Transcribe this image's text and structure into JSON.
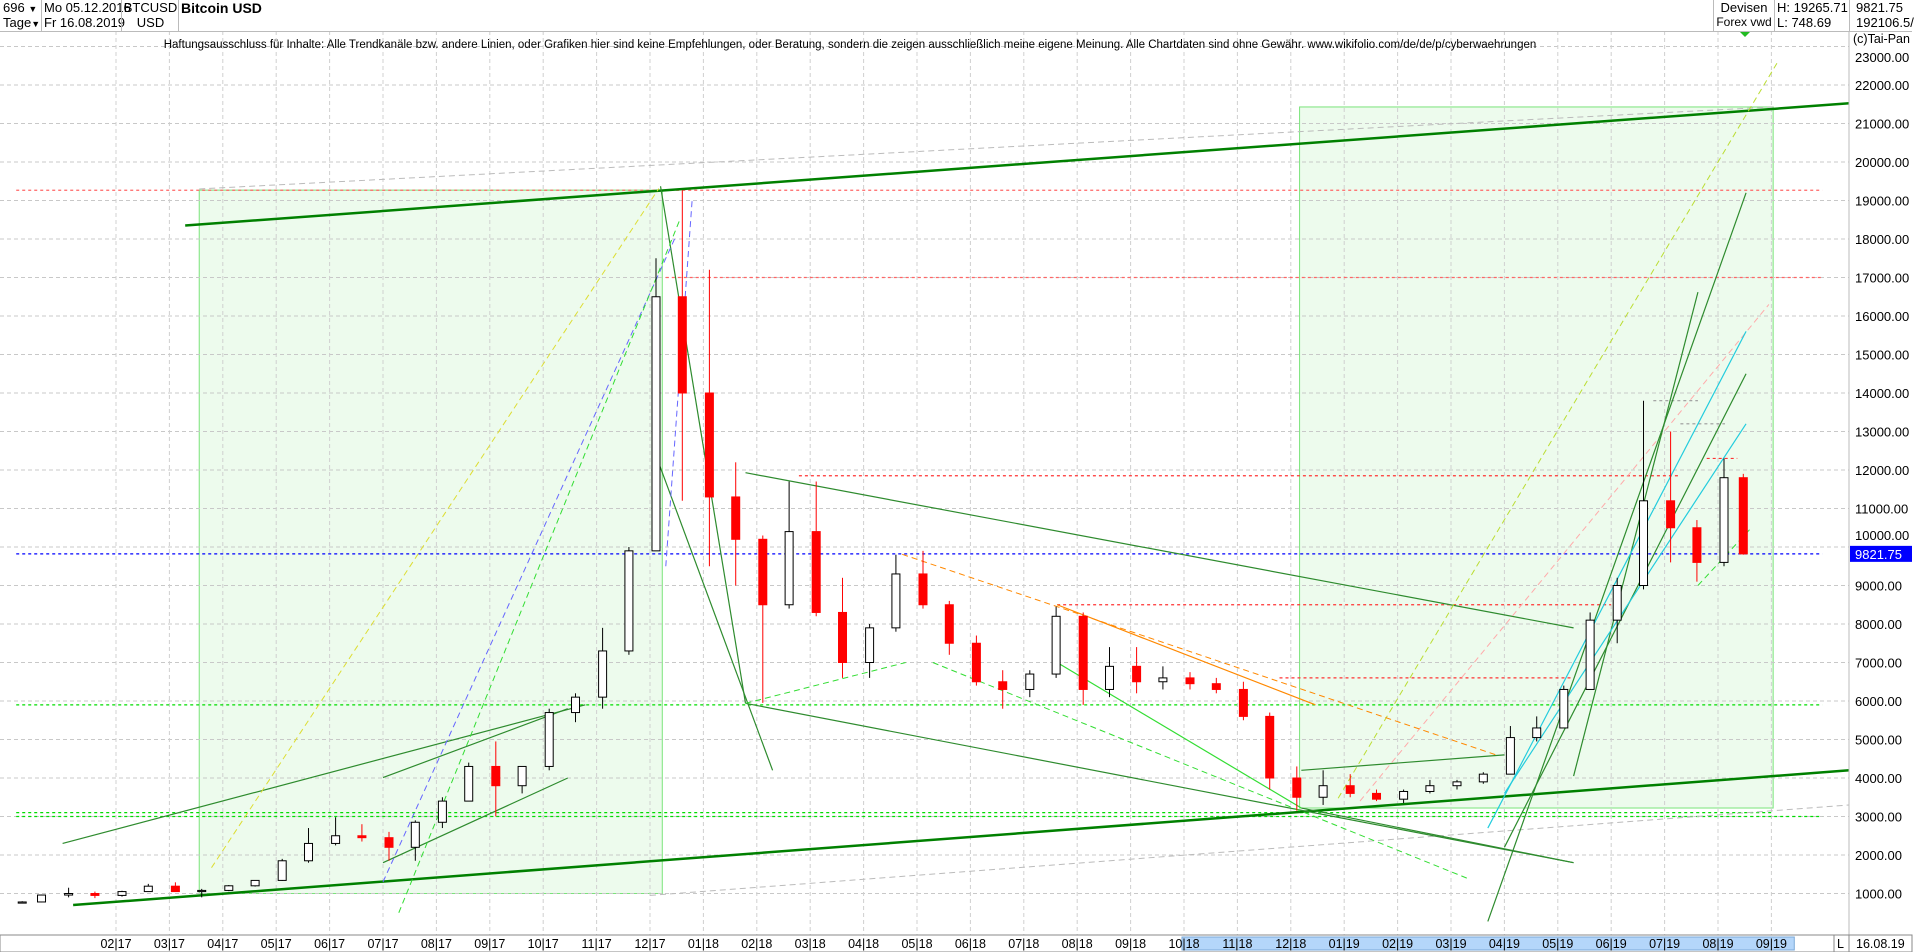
{
  "header": {
    "bars_count": "696",
    "period": "Tage",
    "start_date": "Mo 05.12.2016",
    "end_date": "Fr 16.08.2019",
    "symbol": "BTCUSD",
    "currency": "USD",
    "title": "Bitcoin USD",
    "market": "Devisen",
    "source": "Forex vwd",
    "high": "H: 19265.71",
    "low": "L: 748.69",
    "last": "9821.75",
    "volume": "192106.5/"
  },
  "disclaimer": "Haftungsausschluss für Inhalte: Alle Trendkanäle bzw. andere Linien, oder Grafiken hier sind keine Empfehlungen, oder Beratung, sondern die zeigen ausschließlich meine eigene Meinung. Alle Chartdaten sind ohne Gewähr.  www.wikifolio.com/de/de/p/cyberwaehrungen",
  "copyright": "(c)Tai-Pan",
  "axis_footer": {
    "log_toggle": "L",
    "last_date": "16.08.19"
  },
  "chart_data": {
    "type": "candlestick",
    "title": "Bitcoin USD",
    "ylim": [
      0,
      23000
    ],
    "xlim": [
      "2016-12-05",
      "2019-09-30"
    ],
    "y_ticks": [
      "1000.00",
      "2000.00",
      "3000.00",
      "4000.00",
      "5000.00",
      "6000.00",
      "7000.00",
      "8000.00",
      "9000.00",
      "10000.00",
      "11000.00",
      "12000.00",
      "13000.00",
      "14000.00",
      "15000.00",
      "16000.00",
      "17000.00",
      "18000.00",
      "19000.00",
      "20000.00",
      "21000.00",
      "22000.00",
      "23000.00"
    ],
    "x_ticks": [
      {
        "date": "2017-02-01",
        "label": "02|17"
      },
      {
        "date": "2017-03-01",
        "label": "03|17"
      },
      {
        "date": "2017-04-01",
        "label": "04|17"
      },
      {
        "date": "2017-05-01",
        "label": "05|17"
      },
      {
        "date": "2017-06-01",
        "label": "06|17"
      },
      {
        "date": "2017-07-01",
        "label": "07|17"
      },
      {
        "date": "2017-08-01",
        "label": "08|17"
      },
      {
        "date": "2017-09-01",
        "label": "09|17"
      },
      {
        "date": "2017-10-01",
        "label": "10|17"
      },
      {
        "date": "2017-11-01",
        "label": "11|17"
      },
      {
        "date": "2017-12-01",
        "label": "12|17"
      },
      {
        "date": "2018-01-01",
        "label": "01|18"
      },
      {
        "date": "2018-02-01",
        "label": "02|18"
      },
      {
        "date": "2018-03-01",
        "label": "03|18"
      },
      {
        "date": "2018-04-01",
        "label": "04|18"
      },
      {
        "date": "2018-05-01",
        "label": "05|18"
      },
      {
        "date": "2018-06-01",
        "label": "06|18"
      },
      {
        "date": "2018-07-01",
        "label": "07|18"
      },
      {
        "date": "2018-08-01",
        "label": "08|18"
      },
      {
        "date": "2018-09-01",
        "label": "09|18"
      },
      {
        "date": "2018-10-01",
        "label": "10|18"
      },
      {
        "date": "2018-11-01",
        "label": "11|18"
      },
      {
        "date": "2018-12-01",
        "label": "12|18"
      },
      {
        "date": "2019-01-01",
        "label": "01|19"
      },
      {
        "date": "2019-02-01",
        "label": "02|19"
      },
      {
        "date": "2019-03-01",
        "label": "03|19"
      },
      {
        "date": "2019-04-01",
        "label": "04|19"
      },
      {
        "date": "2019-05-01",
        "label": "05|19"
      },
      {
        "date": "2019-06-01",
        "label": "06|19"
      },
      {
        "date": "2019-07-01",
        "label": "07|19"
      },
      {
        "date": "2019-08-01",
        "label": "08|19"
      },
      {
        "date": "2019-09-01",
        "label": "09|19"
      }
    ],
    "highlight_range": [
      "2018-10-01",
      "2019-09-30"
    ],
    "grid": true,
    "colors": {
      "up": "#000000",
      "down": "#ff0000",
      "last_price": "#0000ff"
    },
    "last_price": 9821.75,
    "ohlc_columns": [
      "date",
      "open",
      "high",
      "low",
      "close"
    ],
    "ohlc": [
      [
        "2016-12-05",
        750,
        800,
        740,
        780
      ],
      [
        "2016-12-16",
        780,
        970,
        770,
        960
      ],
      [
        "2017-01-01",
        960,
        1150,
        900,
        1000
      ],
      [
        "2017-01-16",
        1000,
        1050,
        880,
        950
      ],
      [
        "2017-02-01",
        950,
        1070,
        920,
        1050
      ],
      [
        "2017-02-16",
        1050,
        1250,
        1040,
        1190
      ],
      [
        "2017-03-01",
        1190,
        1290,
        1100,
        1050
      ],
      [
        "2017-03-16",
        1050,
        1120,
        900,
        1080
      ],
      [
        "2017-04-01",
        1080,
        1220,
        1060,
        1200
      ],
      [
        "2017-04-16",
        1200,
        1350,
        1180,
        1340
      ],
      [
        "2017-05-01",
        1340,
        1900,
        1330,
        1850
      ],
      [
        "2017-05-16",
        1850,
        2700,
        1800,
        2300
      ],
      [
        "2017-06-01",
        2300,
        2980,
        2250,
        2500
      ],
      [
        "2017-06-16",
        2500,
        2800,
        2350,
        2450
      ],
      [
        "2017-07-01",
        2450,
        2600,
        1850,
        2200
      ],
      [
        "2017-07-16",
        2200,
        2900,
        1850,
        2850
      ],
      [
        "2017-08-01",
        2850,
        3500,
        2700,
        3400
      ],
      [
        "2017-08-16",
        3400,
        4400,
        3400,
        4300
      ],
      [
        "2017-09-01",
        4300,
        4950,
        3000,
        3800
      ],
      [
        "2017-09-16",
        3800,
        4300,
        3600,
        4300
      ],
      [
        "2017-10-01",
        4300,
        5800,
        4200,
        5700
      ],
      [
        "2017-10-16",
        5700,
        6200,
        5450,
        6100
      ],
      [
        "2017-11-01",
        6100,
        7900,
        5800,
        7300
      ],
      [
        "2017-11-16",
        7300,
        10000,
        7200,
        9900
      ],
      [
        "2017-12-01",
        9900,
        17500,
        9900,
        16500
      ],
      [
        "2017-12-16",
        16500,
        19265.71,
        11200,
        14000
      ],
      [
        "2018-01-01",
        14000,
        17200,
        9500,
        11300
      ],
      [
        "2018-01-16",
        11300,
        12200,
        9000,
        10200
      ],
      [
        "2018-02-01",
        10200,
        10300,
        5950,
        8500
      ],
      [
        "2018-02-16",
        8500,
        11700,
        8400,
        10400
      ],
      [
        "2018-03-01",
        10400,
        11700,
        8200,
        8300
      ],
      [
        "2018-03-16",
        8300,
        9200,
        6600,
        7000
      ],
      [
        "2018-04-01",
        7000,
        8000,
        6600,
        7900
      ],
      [
        "2018-04-16",
        7900,
        9800,
        7800,
        9300
      ],
      [
        "2018-05-01",
        9300,
        9900,
        8400,
        8500
      ],
      [
        "2018-05-16",
        8500,
        8600,
        7200,
        7500
      ],
      [
        "2018-06-01",
        7500,
        7700,
        6400,
        6500
      ],
      [
        "2018-06-16",
        6500,
        6800,
        5800,
        6300
      ],
      [
        "2018-07-01",
        6300,
        6800,
        6100,
        6700
      ],
      [
        "2018-07-16",
        6700,
        8450,
        6600,
        8200
      ],
      [
        "2018-08-01",
        8200,
        8300,
        5900,
        6300
      ],
      [
        "2018-08-16",
        6300,
        7400,
        6100,
        6900
      ],
      [
        "2018-09-01",
        6900,
        7400,
        6200,
        6500
      ],
      [
        "2018-09-16",
        6500,
        6900,
        6300,
        6600
      ],
      [
        "2018-10-01",
        6600,
        6750,
        6300,
        6450
      ],
      [
        "2018-10-16",
        6450,
        6600,
        6200,
        6300
      ],
      [
        "2018-11-01",
        6300,
        6500,
        5500,
        5600
      ],
      [
        "2018-11-16",
        5600,
        5700,
        3700,
        4000
      ],
      [
        "2018-12-01",
        4000,
        4300,
        3150,
        3500
      ],
      [
        "2018-12-16",
        3500,
        4200,
        3300,
        3800
      ],
      [
        "2019-01-01",
        3800,
        4100,
        3500,
        3600
      ],
      [
        "2019-01-16",
        3600,
        3700,
        3400,
        3450
      ],
      [
        "2019-02-01",
        3450,
        3700,
        3350,
        3650
      ],
      [
        "2019-02-16",
        3650,
        3950,
        3600,
        3800
      ],
      [
        "2019-03-01",
        3800,
        3950,
        3700,
        3900
      ],
      [
        "2019-03-16",
        3900,
        4150,
        3850,
        4100
      ],
      [
        "2019-04-01",
        4100,
        5350,
        4100,
        5050
      ],
      [
        "2019-04-16",
        5050,
        5600,
        4950,
        5300
      ],
      [
        "2019-05-01",
        5300,
        6400,
        5300,
        6300
      ],
      [
        "2019-05-16",
        6300,
        8300,
        6300,
        8100
      ],
      [
        "2019-06-01",
        8100,
        9200,
        7500,
        9000
      ],
      [
        "2019-06-16",
        9000,
        13800,
        8900,
        11200
      ],
      [
        "2019-07-01",
        11200,
        13000,
        9600,
        10500
      ],
      [
        "2019-07-16",
        10500,
        10700,
        9100,
        9600
      ],
      [
        "2019-08-01",
        9600,
        12300,
        9500,
        11800
      ],
      [
        "2019-08-12",
        11800,
        11900,
        9800,
        9821.75
      ]
    ],
    "zones": [
      {
        "from": [
          "2017-03-18",
          1000
        ],
        "to": [
          "2017-12-08",
          19270
        ],
        "color": "#00cc00"
      },
      {
        "from": [
          "2018-12-06",
          3220
        ],
        "to": [
          "2019-09-02",
          21430
        ],
        "color": "#00cc00"
      }
    ],
    "levels": [
      {
        "price": 19265.71,
        "from": "2016-12-05",
        "to": "2019-09-30",
        "color": "#ff6666"
      },
      {
        "price": 17000,
        "from": "2017-12-10",
        "to": "2019-09-30",
        "color": "#ff6666"
      },
      {
        "price": 11850,
        "from": "2018-02-25",
        "to": "2019-07-10",
        "color": "#ff3333"
      },
      {
        "price": 8500,
        "from": "2018-07-20",
        "to": "2019-06-01",
        "color": "#ff3333"
      },
      {
        "price": 6600,
        "from": "2018-11-25",
        "to": "2019-05-10",
        "color": "#ff3333"
      },
      {
        "price": 12300,
        "from": "2019-07-25",
        "to": "2019-08-12",
        "color": "#ff3333"
      },
      {
        "price": 13800,
        "from": "2019-06-25",
        "to": "2019-07-20",
        "color": "#999999"
      },
      {
        "price": 13200,
        "from": "2019-07-10",
        "to": "2019-08-05",
        "color": "#999999"
      },
      {
        "price": 5900,
        "from": "2016-12-05",
        "to": "2019-09-30",
        "color": "#00dd00"
      },
      {
        "price": 3100,
        "from": "2016-12-05",
        "to": "2019-09-02",
        "color": "#00dd00"
      },
      {
        "price": 3000,
        "from": "2016-12-05",
        "to": "2019-09-30",
        "color": "#00dd00"
      },
      {
        "price": 9821.75,
        "from": "2016-12-05",
        "to": "2019-09-30",
        "color": "#0000ff"
      }
    ],
    "trendlines": [
      {
        "from": [
          "2017-03-10",
          18350
        ],
        "to": [
          "2019-10-15",
          21525
        ],
        "color": "#008000",
        "kind": "major"
      },
      {
        "from": [
          "2017-01-07",
          700
        ],
        "to": [
          "2019-10-15",
          4200
        ],
        "color": "#008000",
        "kind": "major"
      },
      {
        "from": [
          "2017-03-18",
          19300
        ],
        "to": [
          "2019-09-02",
          21430
        ],
        "color": "#bbbbbb",
        "kind": "dashed"
      },
      {
        "from": [
          "2017-12-01",
          950
        ],
        "to": [
          "2019-10-15",
          3300
        ],
        "color": "#bbbbbb",
        "kind": "dashed"
      },
      {
        "from": [
          "2017-12-07",
          19370
        ],
        "to": [
          "2018-01-25",
          5940
        ],
        "color": "#2e8b2e",
        "kind": "minor"
      },
      {
        "from": [
          "2017-12-06",
          12180
        ],
        "to": [
          "2018-02-10",
          4200
        ],
        "color": "#2e8b2e",
        "kind": "minor"
      },
      {
        "from": [
          "2018-01-25",
          11930
        ],
        "to": [
          "2019-05-10",
          7900
        ],
        "color": "#2e8b2e",
        "kind": "minor"
      },
      {
        "from": [
          "2018-01-25",
          5940
        ],
        "to": [
          "2019-05-10",
          1800
        ],
        "color": "#2e8b2e",
        "kind": "minor"
      },
      {
        "from": [
          "2018-12-07",
          3220
        ],
        "to": [
          "2019-05-10",
          1800
        ],
        "color": "#2e8b2e",
        "kind": "minor"
      },
      {
        "from": [
          "2018-12-07",
          4200
        ],
        "to": [
          "2019-04-01",
          4600
        ],
        "color": "#2e8b2e",
        "kind": "minor"
      },
      {
        "from": [
          "2017-01-01",
          2300
        ],
        "to": [
          "2017-10-25",
          5900
        ],
        "color": "#2e8b2e",
        "kind": "minor"
      },
      {
        "from": [
          "2017-07-01",
          4010
        ],
        "to": [
          "2017-10-15",
          5800
        ],
        "color": "#2e8b2e",
        "kind": "minor"
      },
      {
        "from": [
          "2017-07-01",
          1800
        ],
        "to": [
          "2017-10-15",
          4000
        ],
        "color": "#2e8b2e",
        "kind": "minor"
      },
      {
        "from": [
          "2017-03-25",
          1670
        ],
        "to": [
          "2017-12-06",
          19310
        ],
        "color": "#dddd33",
        "kind": "dashed"
      },
      {
        "from": [
          "2018-12-28",
          3475
        ],
        "to": [
          "2019-09-05",
          22630
        ],
        "color": "#bbdd33",
        "kind": "dashed"
      },
      {
        "from": [
          "2019-01-10",
          3400
        ],
        "to": [
          "2019-08-30",
          16300
        ],
        "color": "#ffaaaa",
        "kind": "dashed"
      },
      {
        "from": [
          "2019-03-22",
          275
        ],
        "to": [
          "2019-08-17",
          19200
        ],
        "color": "#2e8b2e",
        "kind": "minor"
      },
      {
        "from": [
          "2019-05-10",
          4050
        ],
        "to": [
          "2019-07-20",
          16620
        ],
        "color": "#2e8b2e",
        "kind": "minor"
      },
      {
        "from": [
          "2019-04-01",
          2200
        ],
        "to": [
          "2019-08-17",
          14500
        ],
        "color": "#2e8b2e",
        "kind": "minor"
      },
      {
        "from": [
          "2019-03-22",
          2700
        ],
        "to": [
          "2019-08-17",
          15600
        ],
        "color": "#22ccdd",
        "kind": "minor"
      },
      {
        "from": [
          "2019-04-01",
          3600
        ],
        "to": [
          "2019-08-17",
          13200
        ],
        "color": "#22ccdd",
        "kind": "minor"
      },
      {
        "from": [
          "2018-04-23",
          9810
        ],
        "to": [
          "2019-03-28",
          4580
        ],
        "color": "#ff8800",
        "kind": "dashed"
      },
      {
        "from": [
          "2018-07-20",
          8500
        ],
        "to": [
          "2018-12-15",
          5900
        ],
        "color": "#ff8800",
        "kind": "minor"
      },
      {
        "from": [
          "2018-01-25",
          5940
        ],
        "to": [
          "2018-04-25",
          7000
        ],
        "color": "#33dd33",
        "kind": "dashed"
      },
      {
        "from": [
          "2018-05-10",
          7000
        ],
        "to": [
          "2019-03-10",
          1400
        ],
        "color": "#33dd33",
        "kind": "dashed"
      },
      {
        "from": [
          "2018-07-20",
          7000
        ],
        "to": [
          "2018-12-07",
          3220
        ],
        "color": "#33dd33",
        "kind": "minor"
      },
      {
        "from": [
          "2017-12-10",
          9500
        ],
        "to": [
          "2017-12-25",
          19000
        ],
        "color": "#6666ff",
        "kind": "dashed"
      },
      {
        "from": [
          "2017-07-01",
          1300
        ],
        "to": [
          "2017-12-15",
          18000
        ],
        "color": "#6666ff",
        "kind": "dashed"
      },
      {
        "from": [
          "2017-07-10",
          500
        ],
        "to": [
          "2017-12-18",
          18500
        ],
        "color": "#33dd33",
        "kind": "dashed"
      },
      {
        "from": [
          "2019-07-20",
          9000
        ],
        "to": [
          "2019-08-20",
          10500
        ],
        "color": "#33dd33",
        "kind": "dashed"
      }
    ]
  }
}
